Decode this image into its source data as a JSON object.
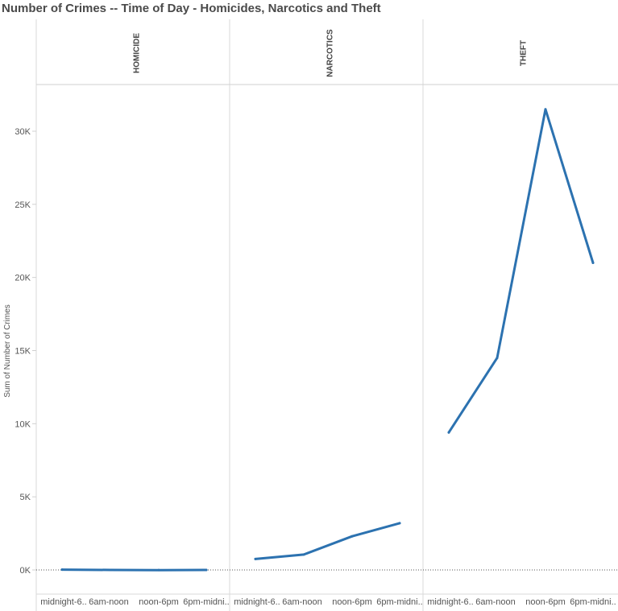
{
  "chart_data": {
    "type": "line",
    "title": "Number of Crimes -- Time of Day - Homicides, Narcotics and Theft",
    "ylabel": "Sum of Number of Crimes",
    "ylim": [
      -1500,
      33200
    ],
    "y_ticks": [
      0,
      5000,
      10000,
      15000,
      20000,
      25000,
      30000
    ],
    "y_tick_labels": [
      "0K",
      "5K",
      "10K",
      "15K",
      "20K",
      "25K",
      "30K"
    ],
    "categories": [
      "midnight-6am",
      "6am-noon",
      "noon-6pm",
      "6pm-midnight"
    ],
    "category_labels": [
      "midnight-6..",
      "6am-noon",
      "noon-6pm",
      "6pm-midni.."
    ],
    "series": [
      {
        "name": "HOMICIDE",
        "values": [
          20,
          0,
          -10,
          0
        ]
      },
      {
        "name": "NARCOTICS",
        "values": [
          750,
          1050,
          2300,
          3200
        ]
      },
      {
        "name": "THEFT",
        "values": [
          9400,
          14500,
          31500,
          21000
        ]
      }
    ],
    "line_color": "#2c72b0",
    "grid": false
  }
}
